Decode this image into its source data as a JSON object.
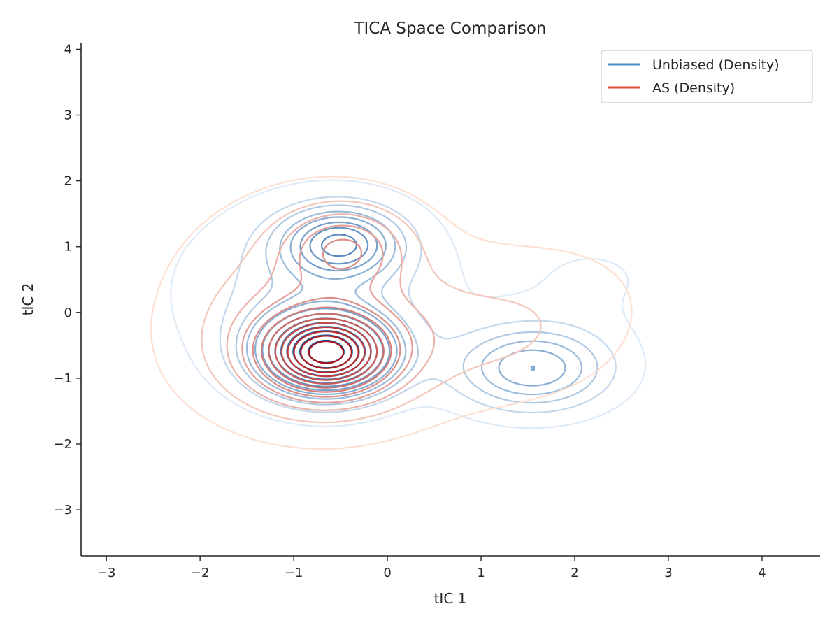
{
  "chart_data": {
    "type": "contour",
    "title": "TICA Space Comparison",
    "xlabel": "tIC 1",
    "ylabel": "tIC 2",
    "xlim": [
      -3.27,
      4.62
    ],
    "ylim": [
      -3.7,
      4.1
    ],
    "xticks": [
      -3,
      -2,
      -1,
      0,
      1,
      2,
      3,
      4
    ],
    "yticks": [
      -3,
      -2,
      -1,
      0,
      1,
      2,
      3,
      4
    ],
    "xtick_labels": [
      "−3",
      "−2",
      "−1",
      "0",
      "1",
      "2",
      "3",
      "4"
    ],
    "ytick_labels": [
      "−3",
      "−2",
      "−1",
      "0",
      "1",
      "2",
      "3",
      "4"
    ],
    "grid": false,
    "legend_position": "top-right",
    "series": [
      {
        "name": "Unbiased (Density)",
        "legend_color": "#4292c6",
        "light_color": "#deebf7",
        "dark_color": "#08519c",
        "levels": 13,
        "modes": [
          {
            "x": -0.65,
            "y": -0.62,
            "sx": 0.48,
            "sy": 0.42,
            "w": 1.0
          },
          {
            "x": -0.5,
            "y": 1.05,
            "sx": 0.42,
            "sy": 0.36,
            "w": 0.55
          },
          {
            "x": 1.55,
            "y": -0.85,
            "sx": 0.55,
            "sy": 0.42,
            "w": 0.45
          },
          {
            "x": -0.8,
            "y": 0.3,
            "sx": 0.9,
            "sy": 0.9,
            "w": 0.18
          },
          {
            "x": 2.2,
            "y": 0.5,
            "sx": 0.7,
            "sy": 0.6,
            "w": 0.05
          }
        ]
      },
      {
        "name": "AS (Density)",
        "legend_color": "#e34a33",
        "light_color": "#fee0d2",
        "dark_color": "#a50f15",
        "levels": 13,
        "modes": [
          {
            "x": -0.65,
            "y": -0.62,
            "sx": 0.42,
            "sy": 0.38,
            "w": 1.0
          },
          {
            "x": -0.45,
            "y": 1.0,
            "sx": 0.45,
            "sy": 0.42,
            "w": 0.35
          },
          {
            "x": -0.7,
            "y": -0.6,
            "sx": 0.85,
            "sy": 0.75,
            "w": 0.35
          },
          {
            "x": 1.3,
            "y": -0.3,
            "sx": 0.75,
            "sy": 0.7,
            "w": 0.14
          },
          {
            "x": -0.8,
            "y": 0.5,
            "sx": 1.0,
            "sy": 1.0,
            "w": 0.15
          },
          {
            "x": 2.1,
            "y": 0.4,
            "sx": 0.8,
            "sy": 0.8,
            "w": 0.04
          }
        ]
      }
    ]
  }
}
